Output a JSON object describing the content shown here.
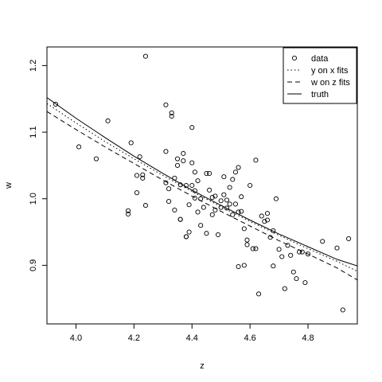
{
  "chart_data": {
    "type": "scatter",
    "title": "",
    "xlabel": "z",
    "ylabel": "w",
    "xlim": [
      3.9,
      4.97
    ],
    "ylim": [
      0.812,
      1.228
    ],
    "x_ticks": [
      4.0,
      4.2,
      4.4,
      4.6,
      4.8
    ],
    "x_tick_labels": [
      "4.0",
      "4.2",
      "4.4",
      "4.6",
      "4.8"
    ],
    "y_ticks": [
      0.9,
      1.0,
      1.1,
      1.2
    ],
    "y_tick_labels": [
      "0.9",
      "1.0",
      "1.1",
      "1.2"
    ],
    "grid": false,
    "legend_position": "top-right",
    "legend": [
      {
        "label": "data",
        "style": "circle"
      },
      {
        "label": "y on x fits",
        "style": "dotted"
      },
      {
        "label": "w on z fits",
        "style": "dashed"
      },
      {
        "label": "truth",
        "style": "solid"
      }
    ],
    "series": [
      {
        "name": "data",
        "kind": "points",
        "x": [
          3.93,
          4.01,
          4.07,
          4.11,
          4.18,
          4.18,
          4.19,
          4.21,
          4.21,
          4.22,
          4.23,
          4.23,
          4.24,
          4.24,
          4.31,
          4.31,
          4.31,
          4.32,
          4.32,
          4.33,
          4.33,
          4.34,
          4.34,
          4.35,
          4.35,
          4.36,
          4.36,
          4.36,
          4.37,
          4.37,
          4.38,
          4.38,
          4.38,
          4.39,
          4.39,
          4.4,
          4.4,
          4.4,
          4.41,
          4.41,
          4.41,
          4.42,
          4.42,
          4.43,
          4.43,
          4.44,
          4.45,
          4.45,
          4.46,
          4.46,
          4.47,
          4.47,
          4.48,
          4.48,
          4.49,
          4.5,
          4.5,
          4.51,
          4.51,
          4.52,
          4.52,
          4.53,
          4.53,
          4.54,
          4.54,
          4.55,
          4.55,
          4.56,
          4.56,
          4.56,
          4.57,
          4.57,
          4.58,
          4.58,
          4.59,
          4.59,
          4.6,
          4.61,
          4.62,
          4.62,
          4.63,
          4.64,
          4.65,
          4.66,
          4.66,
          4.67,
          4.68,
          4.68,
          4.69,
          4.7,
          4.71,
          4.72,
          4.73,
          4.74,
          4.75,
          4.76,
          4.77,
          4.78,
          4.79,
          4.8,
          4.85,
          4.9,
          4.92,
          4.94
        ],
        "y": [
          1.142,
          1.078,
          1.06,
          1.117,
          0.982,
          0.977,
          1.084,
          1.009,
          1.035,
          1.063,
          1.031,
          1.036,
          0.99,
          1.214,
          1.141,
          1.071,
          1.024,
          0.996,
          1.015,
          1.124,
          1.129,
          0.983,
          1.031,
          1.06,
          1.05,
          1.021,
          0.969,
          0.969,
          1.068,
          1.057,
          0.943,
          0.943,
          1.02,
          0.95,
          0.991,
          1.054,
          1.107,
          1.02,
          1.04,
          1.012,
          1.001,
          0.98,
          1.027,
          1.0,
          0.96,
          0.987,
          1.038,
          0.948,
          1.038,
          1.013,
          1.002,
          0.976,
          0.983,
          1.004,
          0.946,
          0.997,
          0.987,
          1.006,
          1.033,
          0.998,
          0.986,
          1.017,
          0.992,
          1.029,
          0.976,
          1.04,
          0.992,
          1.047,
          0.898,
          0.98,
          0.981,
          1.003,
          0.955,
          0.9,
          0.938,
          0.931,
          1.02,
          0.925,
          0.925,
          1.058,
          0.857,
          0.974,
          0.966,
          0.968,
          0.978,
          0.942,
          0.952,
          0.899,
          1.0,
          0.924,
          0.913,
          0.865,
          0.93,
          0.915,
          0.89,
          0.88,
          0.92,
          0.92,
          0.874,
          0.917,
          0.936,
          0.926,
          0.833,
          0.94
        ]
      },
      {
        "name": "y on x fits",
        "kind": "line",
        "style": "dotted",
        "x": [
          3.9,
          4.0,
          4.1,
          4.2,
          4.3,
          4.4,
          4.5,
          4.6,
          4.7,
          4.8,
          4.9,
          4.97
        ],
        "y": [
          1.143,
          1.114,
          1.086,
          1.06,
          1.035,
          1.011,
          0.988,
          0.966,
          0.945,
          0.925,
          0.906,
          0.891
        ]
      },
      {
        "name": "w on z fits",
        "kind": "line",
        "style": "dashed",
        "x": [
          3.9,
          4.0,
          4.1,
          4.2,
          4.3,
          4.4,
          4.5,
          4.6,
          4.7,
          4.8,
          4.9,
          4.97
        ],
        "y": [
          1.131,
          1.104,
          1.078,
          1.053,
          1.028,
          1.004,
          0.981,
          0.959,
          0.937,
          0.917,
          0.896,
          0.878
        ]
      },
      {
        "name": "truth",
        "kind": "line",
        "style": "solid",
        "x": [
          3.9,
          4.0,
          4.1,
          4.2,
          4.3,
          4.4,
          4.5,
          4.6,
          4.7,
          4.8,
          4.9,
          4.97
        ],
        "y": [
          1.152,
          1.121,
          1.092,
          1.064,
          1.038,
          1.013,
          0.99,
          0.968,
          0.947,
          0.928,
          0.909,
          0.899
        ]
      }
    ]
  }
}
